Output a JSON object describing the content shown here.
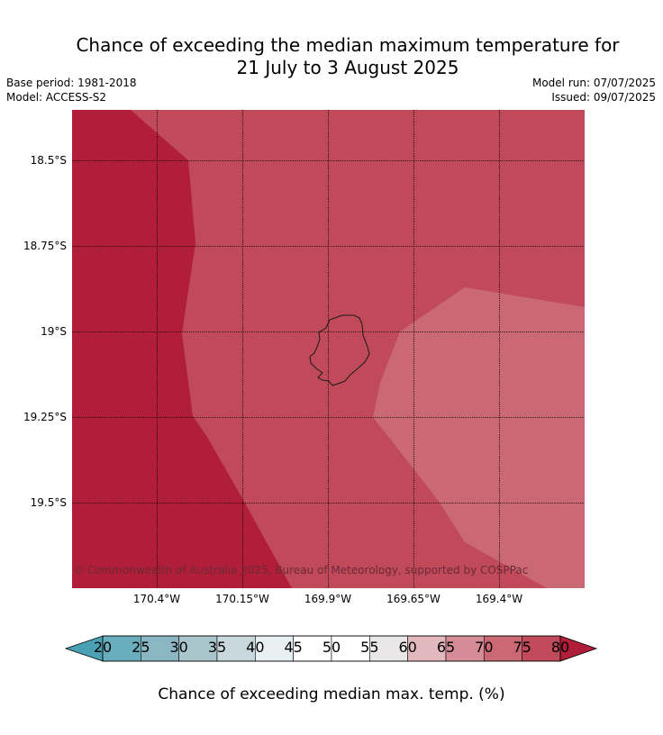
{
  "title_line1": "Chance of exceeding the median maximum temperature for",
  "title_line2": "21 July to 3 August 2025",
  "base_period": "Base period: 1981-2018",
  "model": "Model: ACCESS-S2",
  "model_run": "Model run: 07/07/2025",
  "issued": "Issued: 09/07/2025",
  "lat_labels": [
    "18.5°S",
    "18.75°S",
    "19°S",
    "19.25°S",
    "19.5°S"
  ],
  "lon_labels": [
    "170.4°W",
    "170.15°W",
    "169.9°W",
    "169.65°W",
    "169.4°W"
  ],
  "copyright": "© Commonwealth of Australia 2025, Bureau of Meteorology, supported by COSPPac",
  "colorbar": {
    "ticks": [
      "20",
      "25",
      "30",
      "35",
      "40",
      "45",
      "50",
      "55",
      "60",
      "65",
      "70",
      "75",
      "80"
    ],
    "colors": [
      "#6aaebe",
      "#8bb7c3",
      "#a8c6cc",
      "#c9d8dc",
      "#e8f0f2",
      "#ffffff",
      "#ffffff",
      "#e9e7e8",
      "#e1b8bd",
      "#d58c96",
      "#ca6874",
      "#c04a59"
    ],
    "under_color": "#4aa0b4",
    "over_color": "#b01e3a",
    "title": "Chance of exceeding median max. temp. (%)"
  },
  "region_colors": {
    "over_80": "#b11e3a",
    "75_80": "#c04a59",
    "70_75": "#ca6874"
  }
}
